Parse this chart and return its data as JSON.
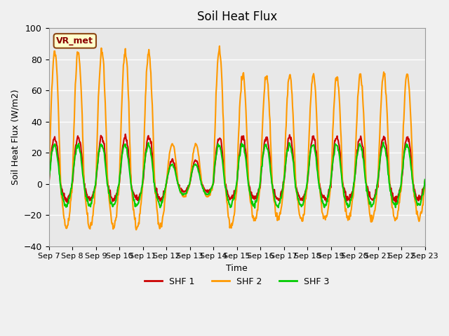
{
  "title": "Soil Heat Flux",
  "ylabel": "Soil Heat Flux (W/m2)",
  "xlabel": "Time",
  "ylim": [
    -40,
    100
  ],
  "background_color": "#f0f0f0",
  "plot_bg_color": "#e8e8e8",
  "grid_color": "#ffffff",
  "shf1_color": "#cc0000",
  "shf2_color": "#ff9900",
  "shf3_color": "#00cc00",
  "line_width": 1.5,
  "xtick_labels": [
    "Sep 7",
    "Sep 8",
    "Sep 9",
    "Sep 10",
    "Sep 11",
    "Sep 12",
    "Sep 13",
    "Sep 14",
    "Sep 15",
    "Sep 16",
    "Sep 17",
    "Sep 18",
    "Sep 19",
    "Sep 20",
    "Sep 21",
    "Sep 22"
  ],
  "vr_met_label": "VR_met",
  "legend_entries": [
    "SHF 1",
    "SHF 2",
    "SHF 3"
  ],
  "n_days": 16,
  "start_day": 7
}
